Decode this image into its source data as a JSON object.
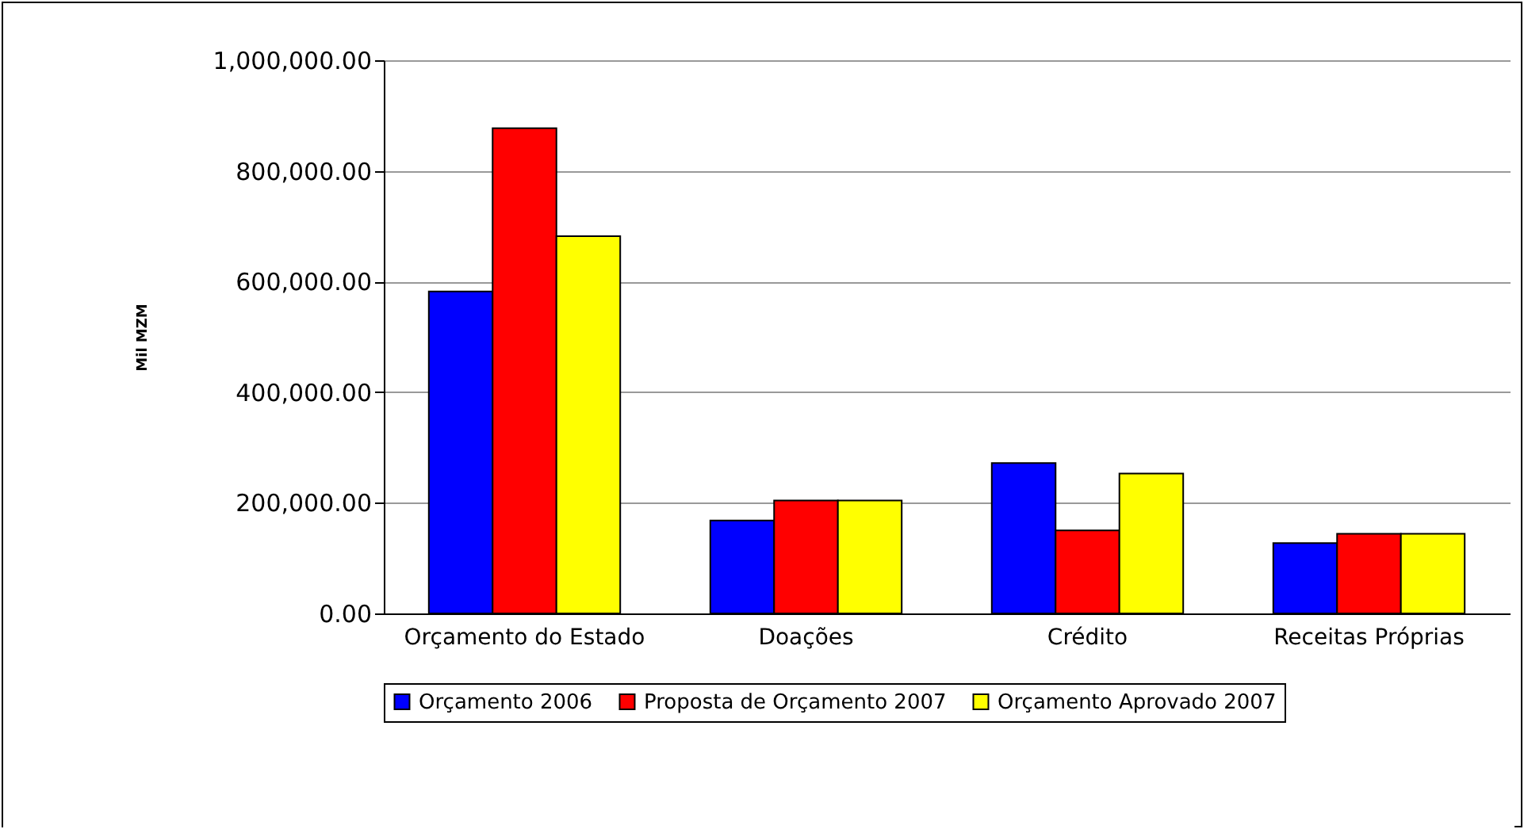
{
  "chart_data": {
    "type": "bar",
    "ylabel": "Mil MZM",
    "categories": [
      "Orçamento do Estado",
      "Doações",
      "Crédito",
      "Receitas Próprias"
    ],
    "series": [
      {
        "name": "Orçamento 2006",
        "color": "#0000ff",
        "values": [
          582000,
          168000,
          272000,
          127000
        ]
      },
      {
        "name": "Proposta de Orçamento 2007",
        "color": "#ff0000",
        "values": [
          877000,
          204000,
          150000,
          144000
        ]
      },
      {
        "name": "Orçamento Aprovado 2007",
        "color": "#ffff00",
        "values": [
          682000,
          204000,
          253000,
          144000
        ]
      }
    ],
    "ylim": [
      0,
      1000000
    ],
    "yticks": [
      {
        "value": 0,
        "label": "0.00"
      },
      {
        "value": 200000,
        "label": "200,000.00"
      },
      {
        "value": 400000,
        "label": "400,000.00"
      },
      {
        "value": 600000,
        "label": "600,000.00"
      },
      {
        "value": 800000,
        "label": "800,000.00"
      },
      {
        "value": 1000000,
        "label": "1,000,000.00"
      }
    ],
    "grid": "y",
    "legend": "bottom"
  }
}
